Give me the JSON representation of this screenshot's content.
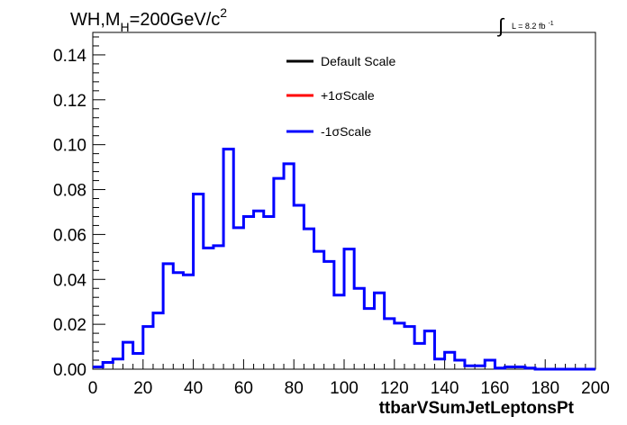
{
  "chart_data": {
    "type": "line",
    "title_main": "WH,M",
    "title_sub": "H",
    "title_rest": "=200GeV/c",
    "title_sup": "2",
    "lumi_label": "L = 8.2 fb",
    "lumi_sup": "-1",
    "xlabel": "ttbarVSumJetLeptonsPt",
    "xlim": [
      0,
      200
    ],
    "ylim": [
      0,
      0.15
    ],
    "xticks": [
      "0",
      "20",
      "40",
      "60",
      "80",
      "100",
      "120",
      "140",
      "160",
      "180",
      "200"
    ],
    "yticks": [
      "0.00",
      "0.02",
      "0.04",
      "0.06",
      "0.08",
      "0.10",
      "0.12",
      "0.14"
    ],
    "bin_width": 4,
    "legend": [
      {
        "name": "Default Scale",
        "color": "#000000"
      },
      {
        "name": "+1σScale",
        "color": "#ff0000"
      },
      {
        "name": "-1σScale",
        "color": "#0000ff"
      }
    ],
    "series": [
      {
        "name": "-1σScale",
        "color": "#0000ff",
        "values": [
          0.001,
          0.003,
          0.0045,
          0.012,
          0.007,
          0.019,
          0.025,
          0.047,
          0.043,
          0.042,
          0.078,
          0.054,
          0.055,
          0.098,
          0.063,
          0.068,
          0.0705,
          0.068,
          0.085,
          0.0915,
          0.073,
          0.0625,
          0.0525,
          0.048,
          0.033,
          0.0535,
          0.036,
          0.027,
          0.034,
          0.0225,
          0.0205,
          0.019,
          0.0115,
          0.017,
          0.0045,
          0.0075,
          0.004,
          0.0015,
          0.0015,
          0.004,
          0.0005,
          0.001,
          0.001,
          0.0005,
          0.0,
          0.0,
          0.0,
          0.0,
          0.0,
          0.0
        ]
      }
    ]
  }
}
